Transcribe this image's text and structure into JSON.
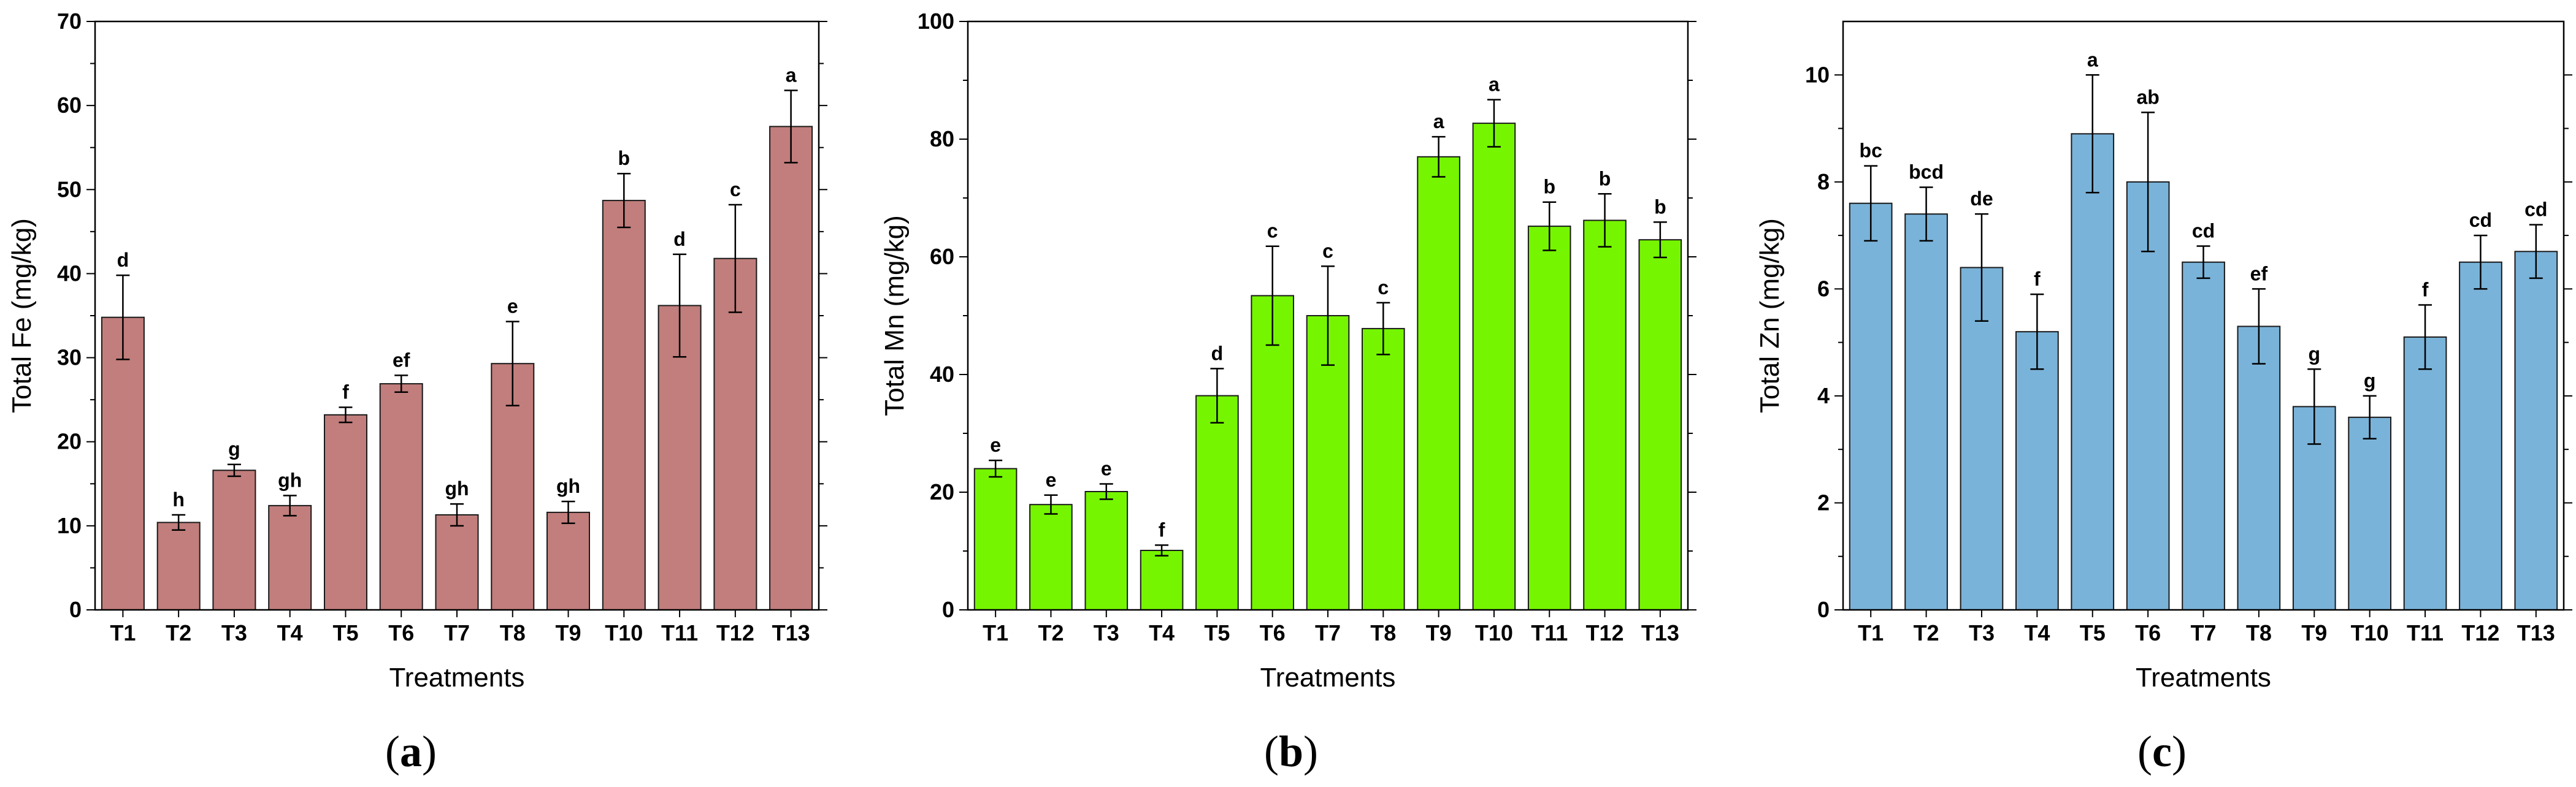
{
  "chart_data": [
    {
      "type": "bar",
      "panel_label": "a",
      "color": "#c17e7c",
      "title": "",
      "xlabel": "Treatments",
      "ylabel": "Total Fe (mg/kg)",
      "ylim": [
        0,
        70
      ],
      "yticks": [
        0,
        10,
        20,
        30,
        40,
        50,
        60,
        70
      ],
      "categories": [
        "T1",
        "T2",
        "T3",
        "T4",
        "T5",
        "T6",
        "T7",
        "T8",
        "T9",
        "T10",
        "T11",
        "T12",
        "T13"
      ],
      "values": [
        34.8,
        10.4,
        16.6,
        12.4,
        23.2,
        26.9,
        11.3,
        29.3,
        11.6,
        48.7,
        36.2,
        41.8,
        57.5
      ],
      "errors": [
        5.0,
        0.9,
        0.7,
        1.2,
        0.9,
        1.0,
        1.3,
        5.0,
        1.3,
        3.2,
        6.1,
        6.4,
        4.3
      ],
      "letters": [
        "d",
        "h",
        "g",
        "gh",
        "f",
        "ef",
        "gh",
        "e",
        "gh",
        "b",
        "d",
        "c",
        "a"
      ]
    },
    {
      "type": "bar",
      "panel_label": "b",
      "color": "#76f500",
      "title": "",
      "xlabel": "Treatments",
      "ylabel": "Total Mn (mg/kg)",
      "ylim": [
        0,
        100
      ],
      "yticks": [
        0,
        20,
        40,
        60,
        80,
        100
      ],
      "categories": [
        "T1",
        "T2",
        "T3",
        "T4",
        "T5",
        "T6",
        "T7",
        "T8",
        "T9",
        "T10",
        "T11",
        "T12",
        "T13"
      ],
      "values": [
        24.0,
        17.9,
        20.1,
        10.1,
        36.4,
        53.4,
        50.0,
        47.8,
        77.0,
        82.7,
        65.2,
        66.2,
        62.9
      ],
      "errors": [
        1.4,
        1.6,
        1.3,
        0.9,
        4.6,
        8.4,
        8.4,
        4.4,
        3.4,
        4.0,
        4.1,
        4.5,
        3.0
      ],
      "letters": [
        "e",
        "e",
        "e",
        "f",
        "d",
        "c",
        "c",
        "c",
        "a",
        "a",
        "b",
        "b",
        "b"
      ]
    },
    {
      "type": "bar",
      "panel_label": "c",
      "color": "#7ab3d9",
      "title": "",
      "xlabel": "Treatments",
      "ylabel": "Total Zn (mg/kg)",
      "ylim": [
        0,
        11
      ],
      "yticks": [
        0,
        2,
        4,
        6,
        8,
        10
      ],
      "categories": [
        "T1",
        "T2",
        "T3",
        "T4",
        "T5",
        "T6",
        "T7",
        "T8",
        "T9",
        "T10",
        "T11",
        "T12",
        "T13"
      ],
      "values": [
        7.6,
        7.4,
        6.4,
        5.2,
        8.9,
        8.0,
        6.5,
        5.3,
        3.8,
        3.6,
        5.1,
        6.5,
        6.7
      ],
      "errors": [
        0.7,
        0.5,
        1.0,
        0.7,
        1.1,
        1.3,
        0.3,
        0.7,
        0.7,
        0.4,
        0.6,
        0.5,
        0.5
      ],
      "letters": [
        "bc",
        "bcd",
        "de",
        "f",
        "a",
        "ab",
        "cd",
        "ef",
        "g",
        "g",
        "f",
        "cd",
        "cd"
      ]
    }
  ]
}
